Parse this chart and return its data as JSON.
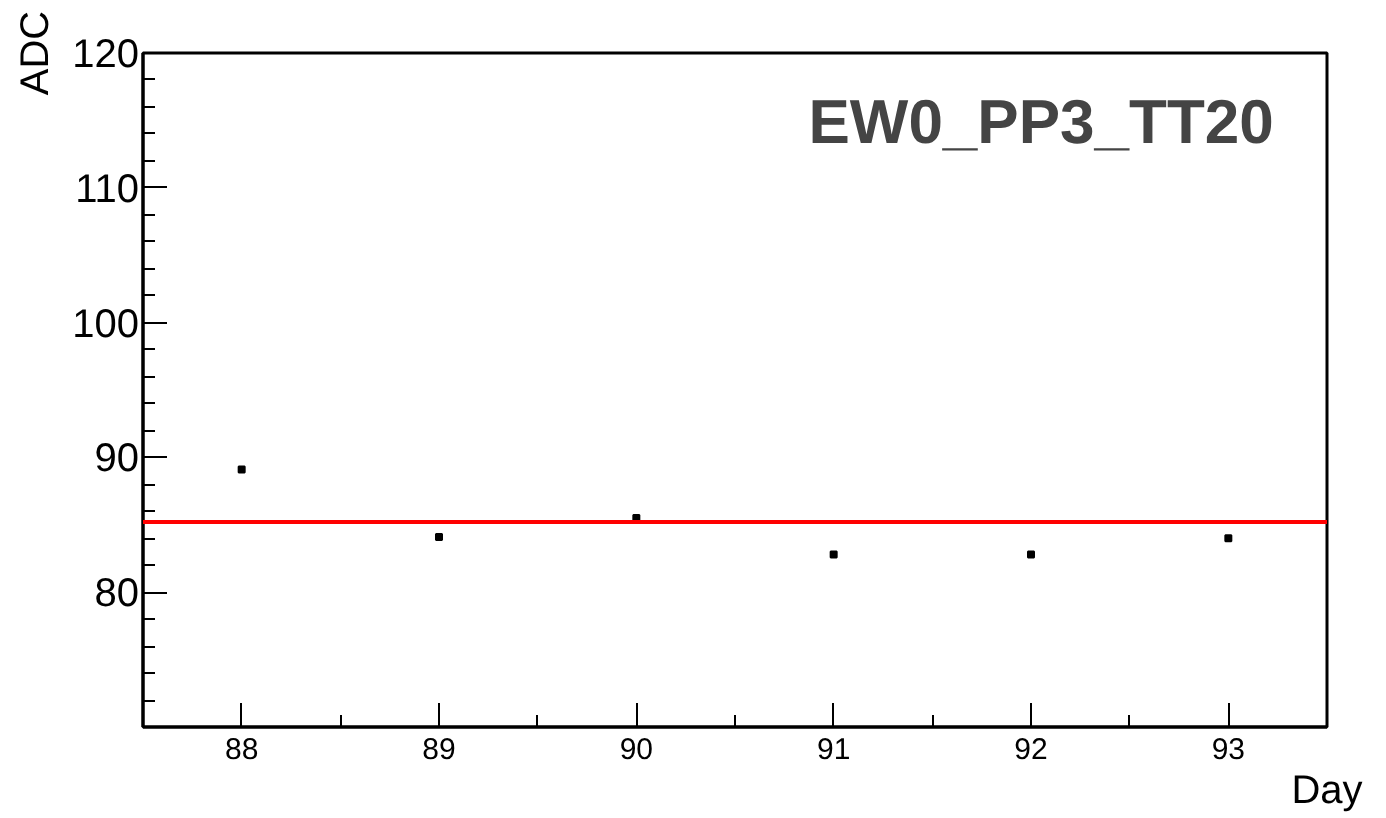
{
  "chart_data": {
    "type": "scatter",
    "title": "EW0_PP3_TT20",
    "xlabel": "Day",
    "ylabel": "ADC",
    "x": [
      88,
      89,
      90,
      91,
      92,
      93
    ],
    "series": [
      {
        "color": "#000000",
        "values": [
          89.1,
          84.1,
          85.5,
          82.8,
          82.8,
          84.0
        ]
      }
    ],
    "marker": "square",
    "grid": false,
    "xlim": [
      87.5,
      93.5
    ],
    "xticks": [
      88,
      89,
      90,
      91,
      92,
      93
    ],
    "ylim": [
      70,
      120
    ],
    "yticks": [
      80,
      90,
      100,
      110,
      120
    ],
    "ref_lines": [
      {
        "axis": "y",
        "value": 85.2,
        "color": "#ff0000"
      }
    ]
  }
}
